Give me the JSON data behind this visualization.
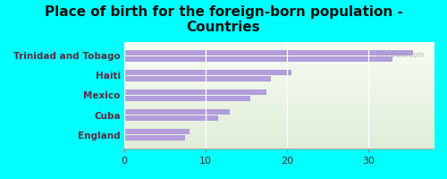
{
  "title": "Place of birth for the foreign-born population -\nCountries",
  "categories": [
    "Trinidad and Tobago",
    "Haiti",
    "Mexico",
    "Cuba",
    "England"
  ],
  "bar1_values": [
    35.5,
    20.5,
    17.5,
    13.0,
    8.0
  ],
  "bar2_values": [
    33.0,
    18.0,
    15.5,
    11.5,
    7.5
  ],
  "bar_color": "#b39ddb",
  "background_color": "#00ffff",
  "plot_bg_top": "#f5f8f0",
  "plot_bg_bottom": "#e8f0e0",
  "xlim": [
    0,
    38
  ],
  "xticks": [
    0,
    10,
    20,
    30
  ],
  "bar_height": 0.28,
  "bar_gap": 0.06,
  "title_fontsize": 11,
  "label_fontsize": 7.5,
  "tick_fontsize": 8,
  "title_fontweight": "bold",
  "label_color": "#5d2a42",
  "watermark": "City-Data.com"
}
